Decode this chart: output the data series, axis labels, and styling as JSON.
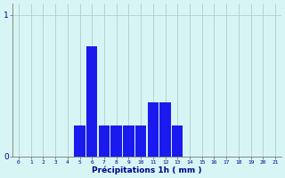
{
  "hours": [
    0,
    1,
    2,
    3,
    4,
    5,
    6,
    7,
    8,
    9,
    10,
    11,
    12,
    13,
    14,
    15,
    16,
    17,
    18,
    19,
    20,
    21
  ],
  "values": [
    0,
    0,
    0,
    0,
    0,
    0.22,
    0.78,
    0.22,
    0.22,
    0.22,
    0.22,
    0.38,
    0.38,
    0.22,
    0,
    0,
    0,
    0,
    0,
    0,
    0,
    0
  ],
  "bar_color": "#1a1aee",
  "background_color": "#d8f5f5",
  "grid_color": "#aacfcf",
  "axis_color": "#777777",
  "text_color": "#00008b",
  "xlabel": "Précipitations 1h ( mm )",
  "ylim": [
    0,
    1.08
  ],
  "xlim": [
    -0.5,
    21.5
  ],
  "yticks": [
    0,
    1
  ],
  "xticks": [
    0,
    1,
    2,
    3,
    4,
    5,
    6,
    7,
    8,
    9,
    10,
    11,
    12,
    13,
    14,
    15,
    16,
    17,
    18,
    19,
    20,
    21
  ]
}
